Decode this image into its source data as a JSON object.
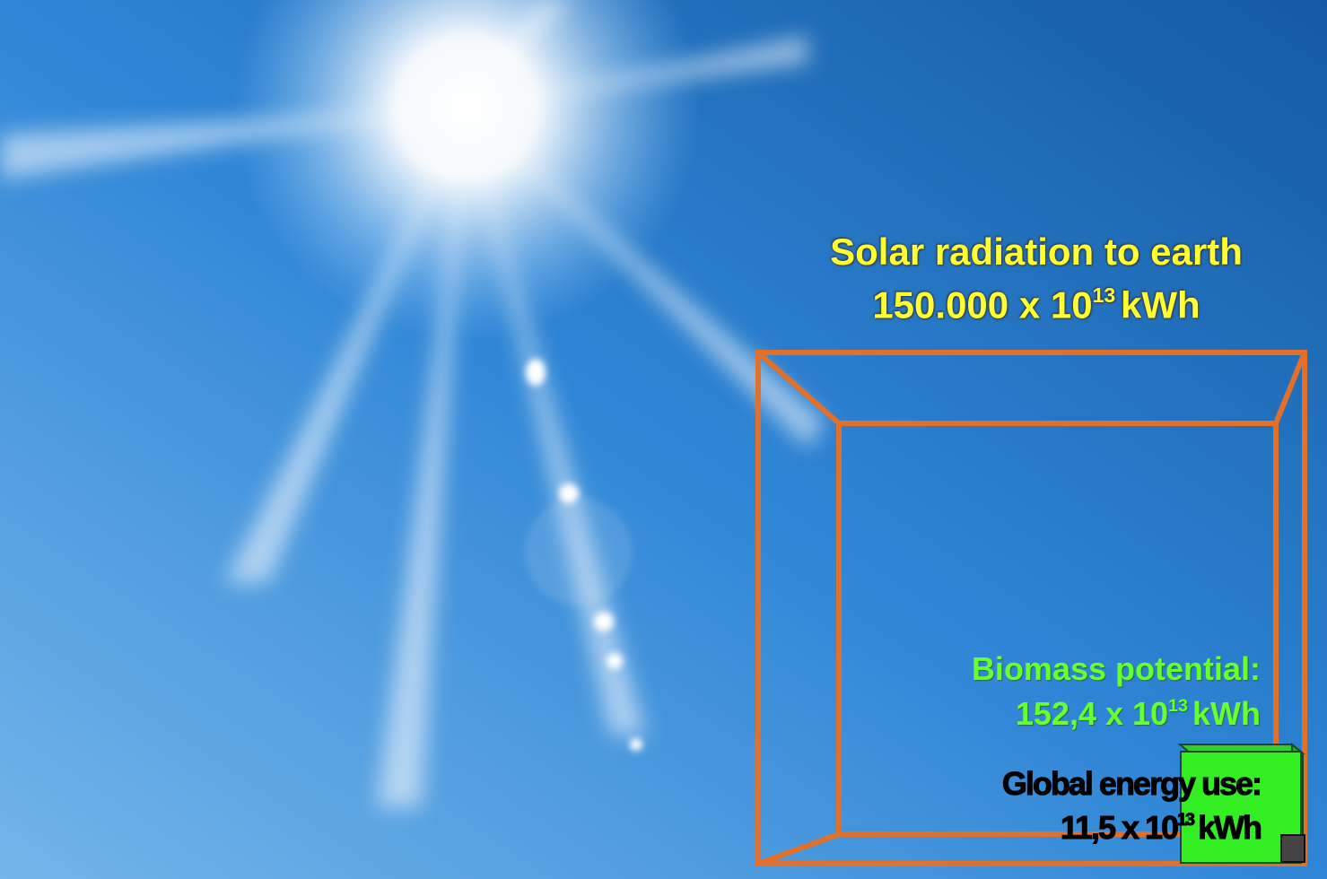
{
  "solar": {
    "title": "Solar radiation to earth",
    "value": "150.000 x 10",
    "exponent": "13",
    "unit": "kWh"
  },
  "biomass": {
    "title": "Biomass potential:",
    "value": "152,4 x 10",
    "exponent": "13",
    "unit": "kWh"
  },
  "global": {
    "title": "Global energy use:",
    "value": "11,5 x 10",
    "exponent": "13",
    "unit": "kWh"
  }
}
